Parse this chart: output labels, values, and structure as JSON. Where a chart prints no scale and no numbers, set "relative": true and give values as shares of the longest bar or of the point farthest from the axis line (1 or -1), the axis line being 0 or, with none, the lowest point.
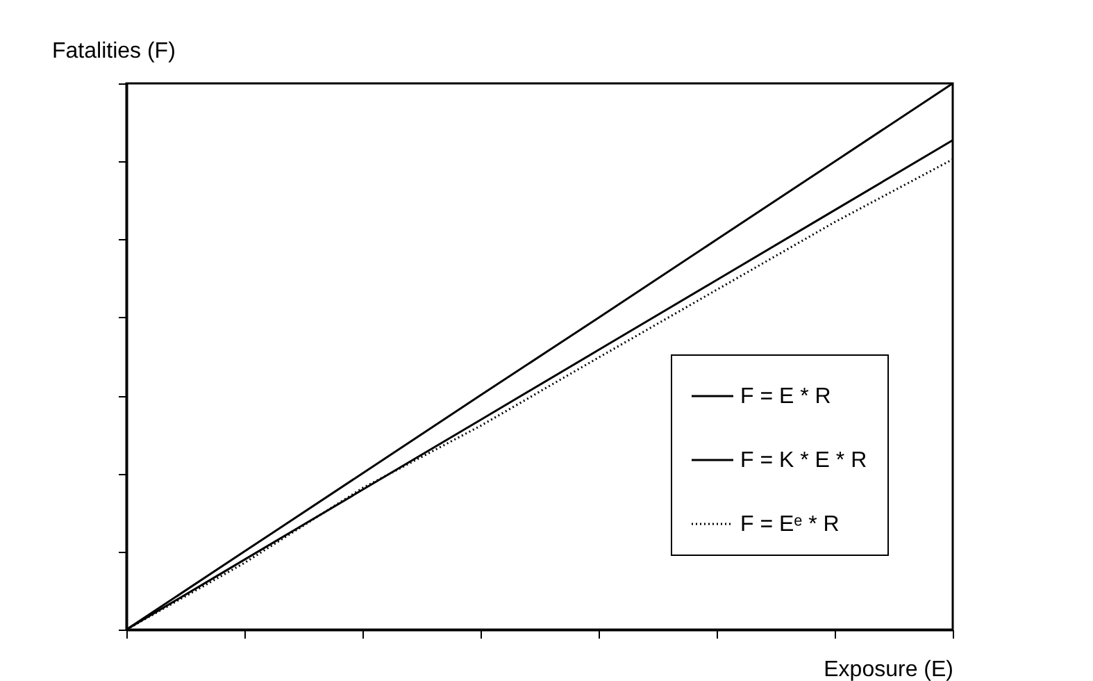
{
  "chart_data": {
    "type": "line",
    "relative": true,
    "xlabel": "Exposure (E)",
    "ylabel": "Fatalities (F)",
    "categories": [
      null,
      null,
      null,
      null,
      null,
      null,
      null,
      null
    ],
    "series": [
      {
        "name": "F = E * R",
        "color": "#000000",
        "line_style": "solid",
        "values": [
          0,
          0.143,
          0.286,
          0.429,
          0.571,
          0.714,
          0.857,
          1
        ]
      },
      {
        "name": "F = K * E * R",
        "color": "#000000",
        "line_style": "solid",
        "values": [
          0,
          0.128,
          0.256,
          0.384,
          0.512,
          0.64,
          0.768,
          0.896
        ]
      },
      {
        "name": "F = Eᵉ * R",
        "color": "#000000",
        "line_style": "dotted",
        "values": [
          0,
          0.122,
          0.259,
          0.373,
          0.498,
          0.622,
          0.746,
          0.861
        ]
      }
    ],
    "legend": "bottom right",
    "grid": false,
    "tick_labels": false
  }
}
